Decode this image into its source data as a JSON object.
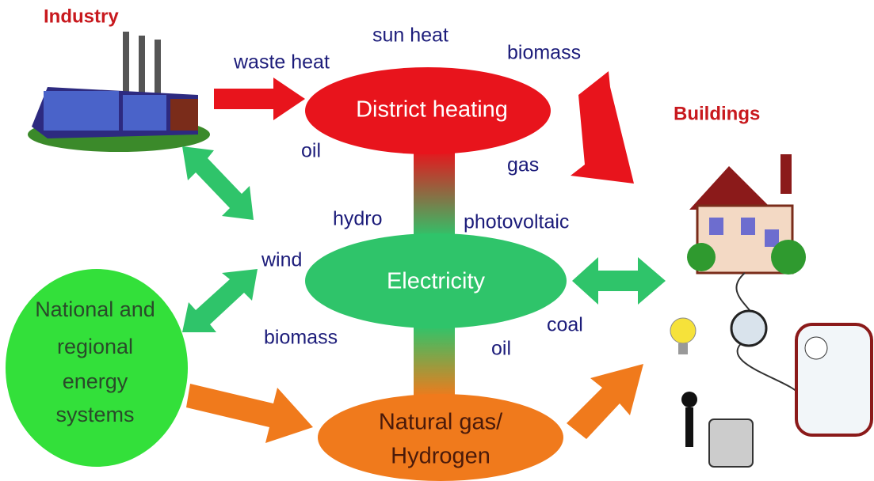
{
  "labels": {
    "industry": "Industry",
    "buildings": "Buildings"
  },
  "nodes": [
    {
      "lines": [
        "District heating"
      ]
    },
    {
      "lines": [
        "Electricity"
      ]
    },
    {
      "lines": [
        "Natural gas/",
        "Hydrogen"
      ]
    },
    {
      "lines": [
        "National and",
        "regional",
        "energy",
        "systems"
      ]
    }
  ],
  "sources": [
    "waste heat",
    "sun heat",
    "biomass",
    "oil",
    "gas",
    "hydro",
    "photovoltaic",
    "wind",
    "biomass",
    "oil",
    "coal"
  ]
}
